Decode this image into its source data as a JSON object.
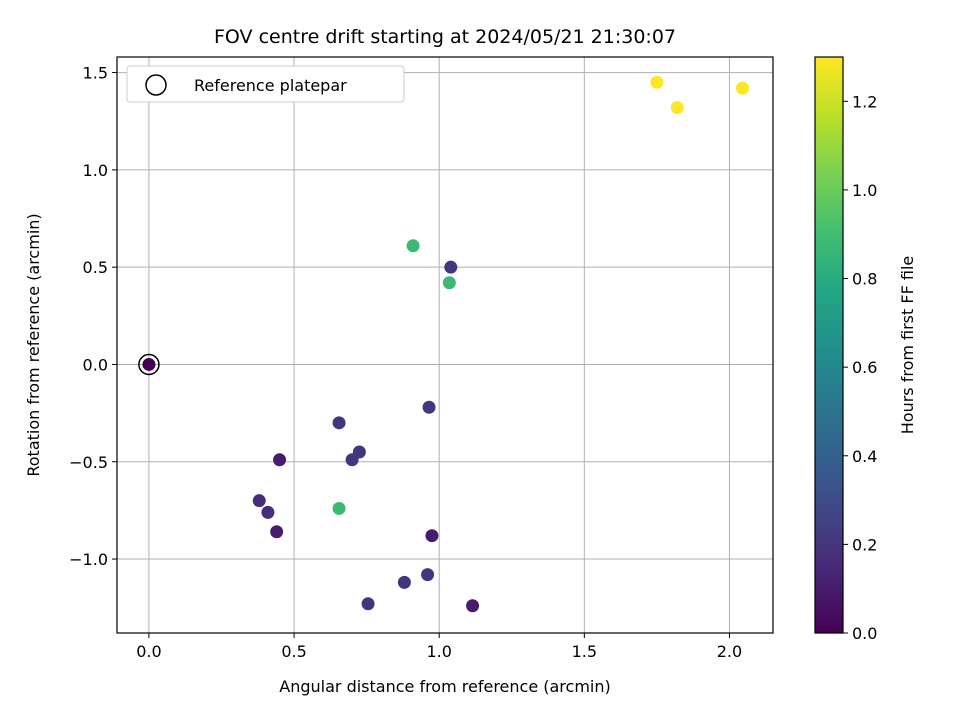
{
  "chart_data": {
    "type": "scatter",
    "title": "FOV centre drift starting at 2024/05/21 21:30:07",
    "xlabel": "Angular distance from reference (arcmin)",
    "ylabel": "Rotation from reference (arcmin)",
    "xlim": [
      -0.11,
      2.15
    ],
    "ylim": [
      -1.38,
      1.58
    ],
    "xticks": [
      0.0,
      0.5,
      1.0,
      1.5,
      2.0
    ],
    "xtick_labels": [
      "0.0",
      "0.5",
      "1.0",
      "1.5",
      "2.0"
    ],
    "yticks": [
      -1.0,
      -0.5,
      0.0,
      0.5,
      1.0,
      1.5
    ],
    "ytick_labels": [
      "−1.0",
      "−0.5",
      "0.0",
      "0.5",
      "1.0",
      "1.5"
    ],
    "grid": true,
    "legend": {
      "position": "top-left",
      "entries": [
        "Reference platepar"
      ]
    },
    "colorbar": {
      "label": "Hours from first FF file",
      "range": [
        0.0,
        1.3
      ],
      "colormap": "viridis",
      "ticks": [
        0.0,
        0.2,
        0.4,
        0.6,
        0.8,
        1.0,
        1.2
      ],
      "tick_labels": [
        "0.0",
        "0.2",
        "0.4",
        "0.6",
        "0.8",
        "1.0",
        "1.2"
      ]
    },
    "reference_point": {
      "x": 0.0,
      "y": 0.0
    },
    "points": [
      {
        "x": 0.0,
        "y": 0.0,
        "hours": 0.0
      },
      {
        "x": 0.38,
        "y": -0.7,
        "hours": 0.17
      },
      {
        "x": 0.41,
        "y": -0.76,
        "hours": 0.17
      },
      {
        "x": 0.44,
        "y": -0.86,
        "hours": 0.1
      },
      {
        "x": 0.45,
        "y": -0.49,
        "hours": 0.1
      },
      {
        "x": 0.655,
        "y": -0.3,
        "hours": 0.2
      },
      {
        "x": 0.655,
        "y": -0.74,
        "hours": 0.88
      },
      {
        "x": 0.7,
        "y": -0.49,
        "hours": 0.2
      },
      {
        "x": 0.725,
        "y": -0.45,
        "hours": 0.2
      },
      {
        "x": 0.755,
        "y": -1.23,
        "hours": 0.2
      },
      {
        "x": 0.88,
        "y": -1.12,
        "hours": 0.2
      },
      {
        "x": 0.91,
        "y": 0.61,
        "hours": 0.88
      },
      {
        "x": 0.96,
        "y": -1.08,
        "hours": 0.2
      },
      {
        "x": 0.965,
        "y": -0.22,
        "hours": 0.2
      },
      {
        "x": 0.975,
        "y": -0.88,
        "hours": 0.1
      },
      {
        "x": 1.035,
        "y": 0.42,
        "hours": 0.88
      },
      {
        "x": 1.04,
        "y": 0.5,
        "hours": 0.2
      },
      {
        "x": 1.115,
        "y": -1.24,
        "hours": 0.1
      },
      {
        "x": 1.75,
        "y": 1.45,
        "hours": 1.3
      },
      {
        "x": 1.82,
        "y": 1.32,
        "hours": 1.3
      },
      {
        "x": 2.045,
        "y": 1.42,
        "hours": 1.3
      }
    ]
  }
}
